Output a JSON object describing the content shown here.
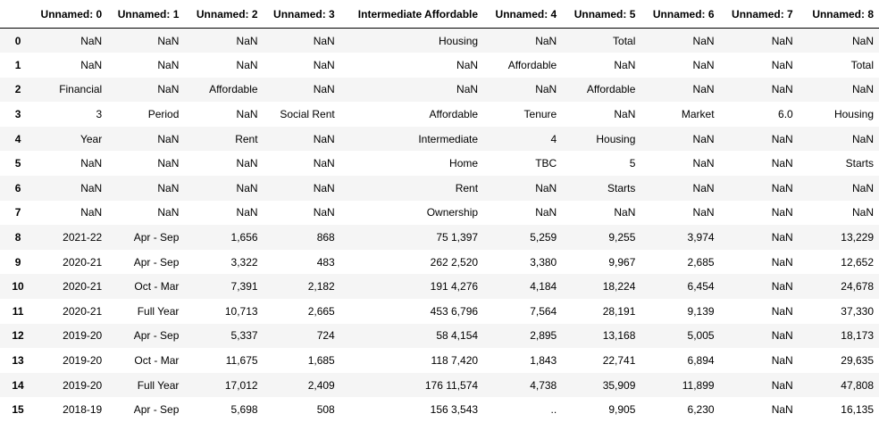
{
  "table": {
    "index_header": "",
    "columns": [
      "Unnamed: 0",
      "Unnamed: 1",
      "Unnamed: 2",
      "Unnamed: 3",
      "Intermediate Affordable",
      "Unnamed: 4",
      "Unnamed: 5",
      "Unnamed: 6",
      "Unnamed: 7",
      "Unnamed: 8"
    ],
    "rows": [
      {
        "index": "0",
        "cells": [
          "NaN",
          "NaN",
          "NaN",
          "NaN",
          "Housing",
          "NaN",
          "Total",
          "NaN",
          "NaN",
          "NaN"
        ]
      },
      {
        "index": "1",
        "cells": [
          "NaN",
          "NaN",
          "NaN",
          "NaN",
          "NaN",
          "Affordable",
          "NaN",
          "NaN",
          "NaN",
          "Total"
        ]
      },
      {
        "index": "2",
        "cells": [
          "Financial",
          "NaN",
          "Affordable",
          "NaN",
          "NaN",
          "NaN",
          "Affordable",
          "NaN",
          "NaN",
          "NaN"
        ]
      },
      {
        "index": "3",
        "cells": [
          "3",
          "Period",
          "NaN",
          "Social Rent",
          "Affordable",
          "Tenure",
          "NaN",
          "Market",
          "6.0",
          "Housing"
        ]
      },
      {
        "index": "4",
        "cells": [
          "Year",
          "NaN",
          "Rent",
          "NaN",
          "Intermediate",
          "4",
          "Housing",
          "NaN",
          "NaN",
          "NaN"
        ]
      },
      {
        "index": "5",
        "cells": [
          "NaN",
          "NaN",
          "NaN",
          "NaN",
          "Home",
          "TBC",
          "5",
          "NaN",
          "NaN",
          "Starts"
        ]
      },
      {
        "index": "6",
        "cells": [
          "NaN",
          "NaN",
          "NaN",
          "NaN",
          "Rent",
          "NaN",
          "Starts",
          "NaN",
          "NaN",
          "NaN"
        ]
      },
      {
        "index": "7",
        "cells": [
          "NaN",
          "NaN",
          "NaN",
          "NaN",
          "Ownership",
          "NaN",
          "NaN",
          "NaN",
          "NaN",
          "NaN"
        ]
      },
      {
        "index": "8",
        "cells": [
          "2021-22",
          "Apr - Sep",
          "1,656",
          "868",
          "75 1,397",
          "5,259",
          "9,255",
          "3,974",
          "NaN",
          "13,229"
        ]
      },
      {
        "index": "9",
        "cells": [
          "2020-21",
          "Apr - Sep",
          "3,322",
          "483",
          "262 2,520",
          "3,380",
          "9,967",
          "2,685",
          "NaN",
          "12,652"
        ]
      },
      {
        "index": "10",
        "cells": [
          "2020-21",
          "Oct - Mar",
          "7,391",
          "2,182",
          "191 4,276",
          "4,184",
          "18,224",
          "6,454",
          "NaN",
          "24,678"
        ]
      },
      {
        "index": "11",
        "cells": [
          "2020-21",
          "Full Year",
          "10,713",
          "2,665",
          "453 6,796",
          "7,564",
          "28,191",
          "9,139",
          "NaN",
          "37,330"
        ]
      },
      {
        "index": "12",
        "cells": [
          "2019-20",
          "Apr - Sep",
          "5,337",
          "724",
          "58 4,154",
          "2,895",
          "13,168",
          "5,005",
          "NaN",
          "18,173"
        ]
      },
      {
        "index": "13",
        "cells": [
          "2019-20",
          "Oct - Mar",
          "11,675",
          "1,685",
          "118 7,420",
          "1,843",
          "22,741",
          "6,894",
          "NaN",
          "29,635"
        ]
      },
      {
        "index": "14",
        "cells": [
          "2019-20",
          "Full Year",
          "17,012",
          "2,409",
          "176 11,574",
          "4,738",
          "35,909",
          "11,899",
          "NaN",
          "47,808"
        ]
      },
      {
        "index": "15",
        "cells": [
          "2018-19",
          "Apr - Sep",
          "5,698",
          "508",
          "156 3,543",
          "..",
          "9,905",
          "6,230",
          "NaN",
          "16,135"
        ]
      }
    ]
  },
  "colors": {
    "stripe": "#f5f5f5",
    "header_rule": "#000000"
  }
}
